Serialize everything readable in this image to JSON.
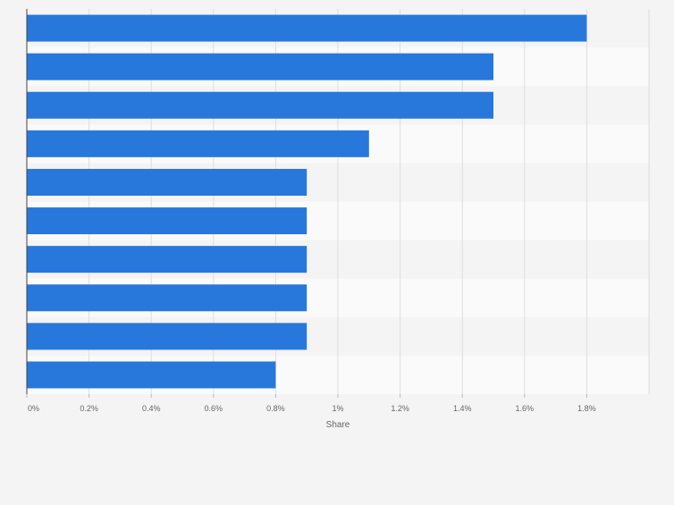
{
  "chart_data": {
    "type": "bar",
    "orientation": "horizontal",
    "categories": [
      "",
      "",
      "",
      "",
      "",
      "",
      "",
      "",
      "",
      ""
    ],
    "values": [
      1.8,
      1.5,
      1.5,
      1.1,
      0.9,
      0.9,
      0.9,
      0.9,
      0.9,
      0.8
    ],
    "xlabel": "Share",
    "ylabel": "",
    "xlim": [
      0,
      2.0
    ],
    "x_ticks": [
      0,
      0.2,
      0.4,
      0.6,
      0.8,
      1.0,
      1.2,
      1.4,
      1.6,
      1.8
    ],
    "x_tick_labels": [
      "0%",
      "0.2%",
      "0.4%",
      "0.6%",
      "0.8%",
      "1%",
      "1.2%",
      "1.4%",
      "1.6%",
      "1.8%"
    ],
    "grid": "vertical",
    "bar_color": "#2878dc",
    "row_band_colors": [
      "#f4f4f4",
      "#fafafa"
    ]
  }
}
